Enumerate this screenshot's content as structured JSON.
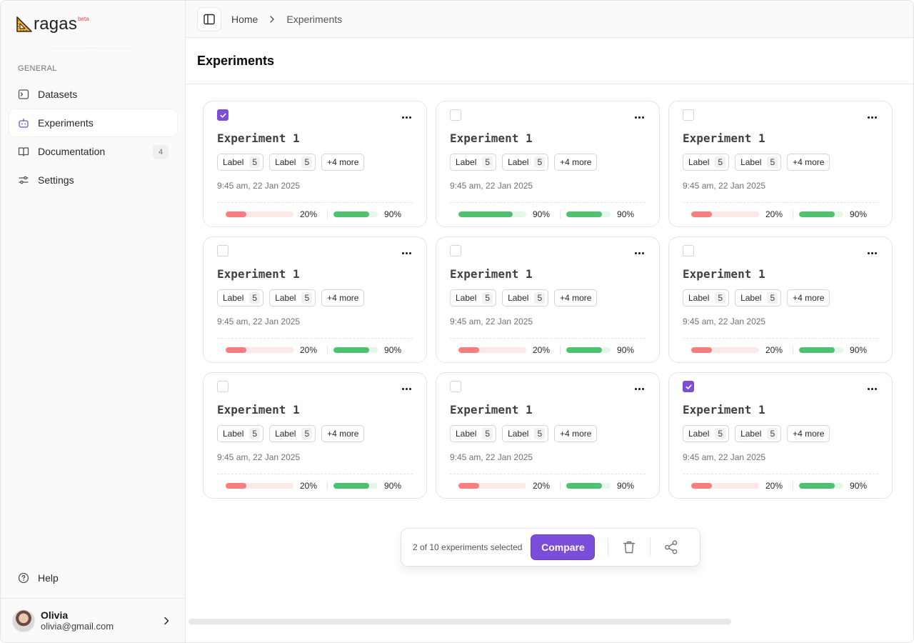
{
  "brand": {
    "name": "ragas",
    "tag": "beta"
  },
  "sidebar": {
    "section_label": "GENERAL",
    "items": [
      {
        "label": "Datasets",
        "icon": "terminal-icon"
      },
      {
        "label": "Experiments",
        "icon": "bot-icon",
        "active": true
      },
      {
        "label": "Documentation",
        "icon": "book-icon",
        "badge": "4"
      },
      {
        "label": "Settings",
        "icon": "sliders-icon"
      }
    ],
    "help_label": "Help",
    "user": {
      "name": "Olivia",
      "email": "olivia@gmail.com"
    }
  },
  "breadcrumb": {
    "home": "Home",
    "current": "Experiments"
  },
  "page": {
    "title": "Experiments"
  },
  "colors": {
    "accent": "#7c4ddb",
    "red": "#fb7c7c",
    "red_track": "#fde8e8",
    "green": "#4cc36e",
    "green_track": "#e4f6e8"
  },
  "experiments": [
    {
      "title": "Experiment 1",
      "checked": true,
      "labels": [
        {
          "name": "Label",
          "count": "5"
        },
        {
          "name": "Label",
          "count": "5"
        }
      ],
      "more": "+4 more",
      "date": "9:45 am, 22 Jan 2025",
      "m1": {
        "value": 0.2,
        "text": "20%",
        "color": "red"
      },
      "m2": {
        "value": 0.9,
        "text": "90%",
        "color": "green"
      }
    },
    {
      "title": "Experiment 1",
      "checked": false,
      "labels": [
        {
          "name": "Label",
          "count": "5"
        },
        {
          "name": "Label",
          "count": "5"
        }
      ],
      "more": "+4 more",
      "date": "9:45 am, 22 Jan 2025",
      "m1": {
        "value": 0.9,
        "text": "90%",
        "color": "green"
      },
      "m2": {
        "value": 0.9,
        "text": "90%",
        "color": "green"
      }
    },
    {
      "title": "Experiment 1",
      "checked": false,
      "labels": [
        {
          "name": "Label",
          "count": "5"
        },
        {
          "name": "Label",
          "count": "5"
        }
      ],
      "more": "+4 more",
      "date": "9:45 am, 22 Jan 2025",
      "m1": {
        "value": 0.2,
        "text": "20%",
        "color": "red"
      },
      "m2": {
        "value": 0.9,
        "text": "90%",
        "color": "green"
      }
    },
    {
      "title": "Experiment 1",
      "checked": false,
      "labels": [
        {
          "name": "Label",
          "count": "5"
        },
        {
          "name": "Label",
          "count": "5"
        }
      ],
      "more": "+4 more",
      "date": "9:45 am, 22 Jan 2025",
      "m1": {
        "value": 0.2,
        "text": "20%",
        "color": "red"
      },
      "m2": {
        "value": 0.9,
        "text": "90%",
        "color": "green"
      }
    },
    {
      "title": "Experiment 1",
      "checked": false,
      "labels": [
        {
          "name": "Label",
          "count": "5"
        },
        {
          "name": "Label",
          "count": "5"
        }
      ],
      "more": "+4 more",
      "date": "9:45 am, 22 Jan 2025",
      "m1": {
        "value": 0.2,
        "text": "20%",
        "color": "red"
      },
      "m2": {
        "value": 0.9,
        "text": "90%",
        "color": "green"
      }
    },
    {
      "title": "Experiment 1",
      "checked": false,
      "labels": [
        {
          "name": "Label",
          "count": "5"
        },
        {
          "name": "Label",
          "count": "5"
        }
      ],
      "more": "+4 more",
      "date": "9:45 am, 22 Jan 2025",
      "m1": {
        "value": 0.2,
        "text": "20%",
        "color": "red"
      },
      "m2": {
        "value": 0.9,
        "text": "90%",
        "color": "green"
      }
    },
    {
      "title": "Experiment 1",
      "checked": false,
      "labels": [
        {
          "name": "Label",
          "count": "5"
        },
        {
          "name": "Label",
          "count": "5"
        }
      ],
      "more": "+4 more",
      "date": "9:45 am, 22 Jan 2025",
      "m1": {
        "value": 0.2,
        "text": "20%",
        "color": "red"
      },
      "m2": {
        "value": 0.9,
        "text": "90%",
        "color": "green"
      }
    },
    {
      "title": "Experiment 1",
      "checked": false,
      "labels": [
        {
          "name": "Label",
          "count": "5"
        },
        {
          "name": "Label",
          "count": "5"
        }
      ],
      "more": "+4 more",
      "date": "9:45 am, 22 Jan 2025",
      "m1": {
        "value": 0.2,
        "text": "20%",
        "color": "red"
      },
      "m2": {
        "value": 0.9,
        "text": "90%",
        "color": "green"
      }
    },
    {
      "title": "Experiment 1",
      "checked": true,
      "labels": [
        {
          "name": "Label",
          "count": "5"
        },
        {
          "name": "Label",
          "count": "5"
        }
      ],
      "more": "+4 more",
      "date": "9:45 am, 22 Jan 2025",
      "m1": {
        "value": 0.2,
        "text": "20%",
        "color": "red"
      },
      "m2": {
        "value": 0.9,
        "text": "90%",
        "color": "green"
      }
    }
  ],
  "selection": {
    "text": "2 of 10 experiments selected",
    "compare_label": "Compare"
  }
}
